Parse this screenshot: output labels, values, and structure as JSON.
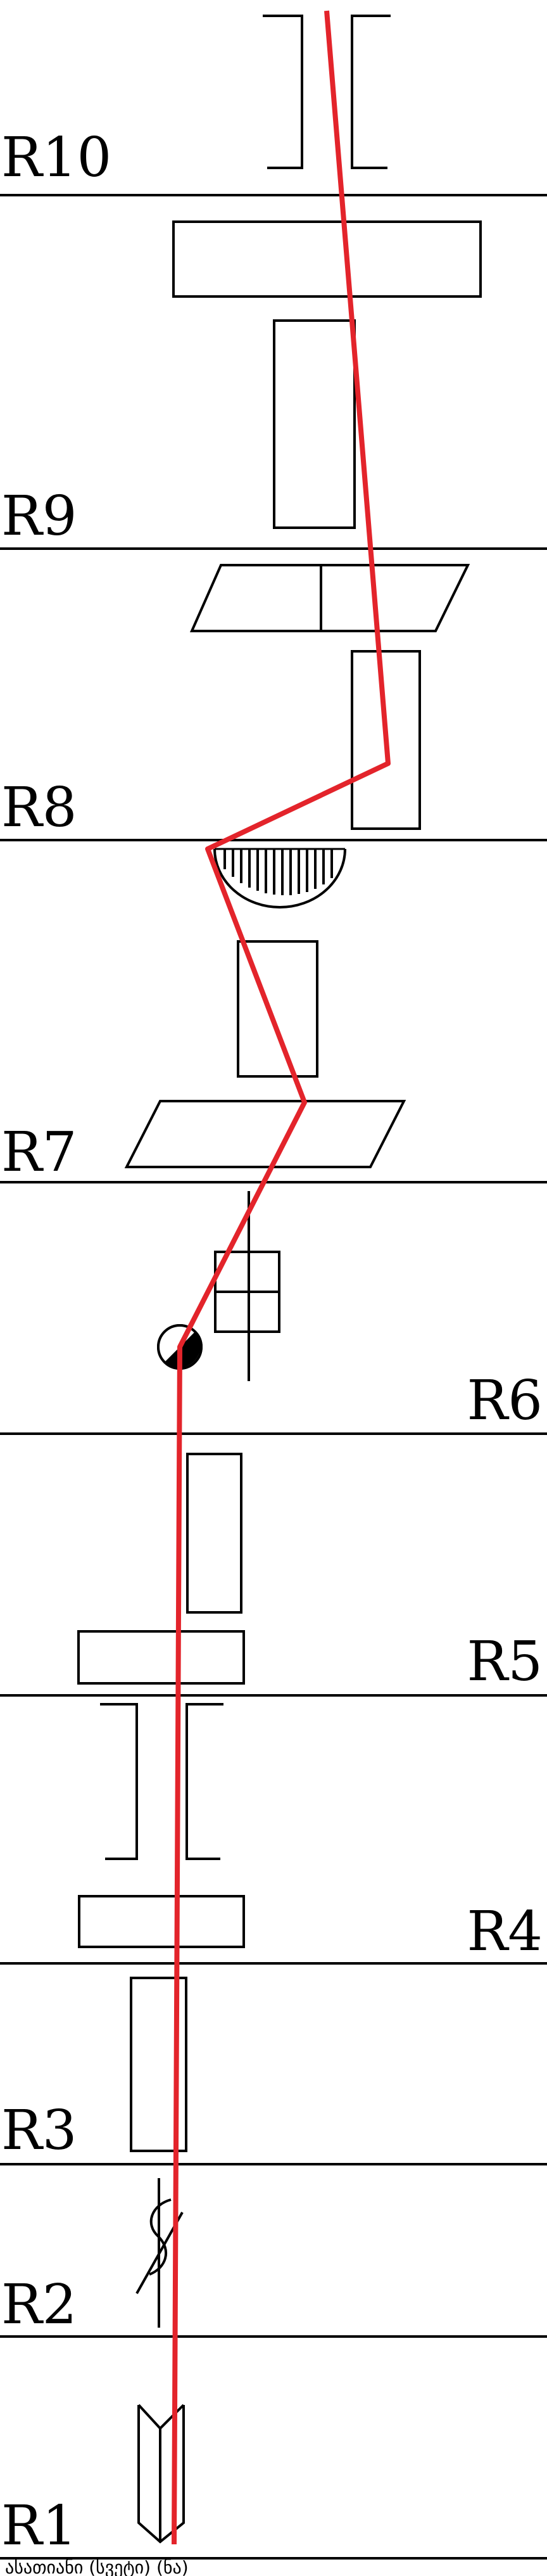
{
  "rows": [
    {
      "id": "R10",
      "label": "R10"
    },
    {
      "id": "R9",
      "label": "R9"
    },
    {
      "id": "R8",
      "label": "R8"
    },
    {
      "id": "R7",
      "label": "R7"
    },
    {
      "id": "R6",
      "label": "R6"
    },
    {
      "id": "R5",
      "label": "R5"
    },
    {
      "id": "R4",
      "label": "R4"
    },
    {
      "id": "R3",
      "label": "R3"
    },
    {
      "id": "R2",
      "label": "R2"
    },
    {
      "id": "R1",
      "label": "R1"
    }
  ],
  "caption": "ასათიანი (სვეტი) (ნა)",
  "colors": {
    "path": "#e3242b",
    "lines": "#000000",
    "background": "#ffffff"
  }
}
